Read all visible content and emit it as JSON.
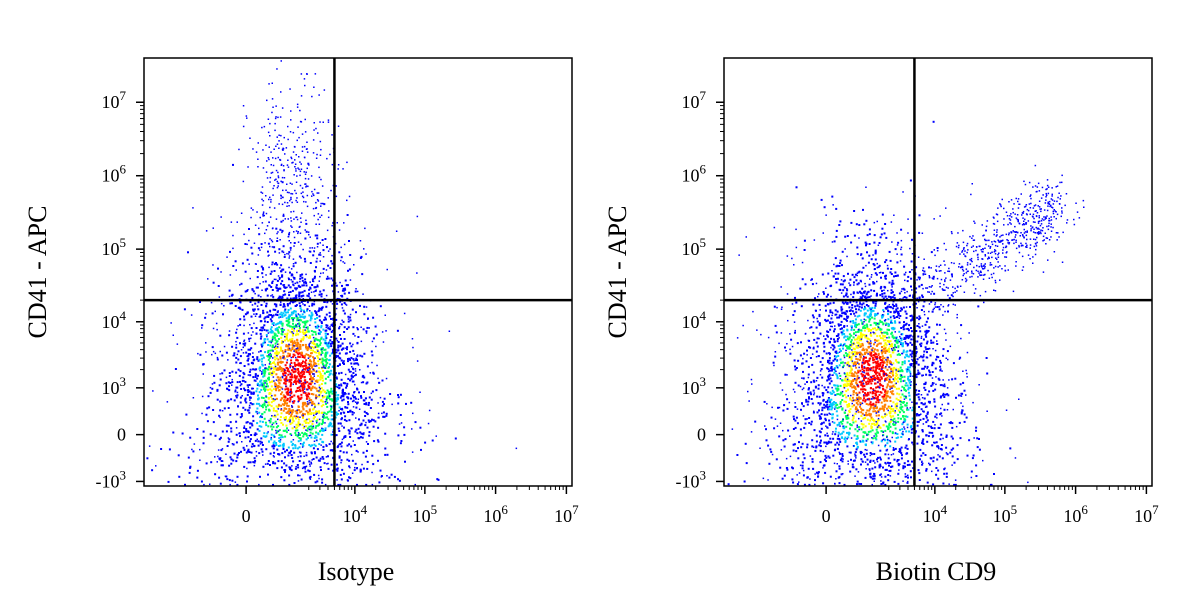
{
  "chart_data": [
    {
      "type": "scatter",
      "subtype": "flow-cytometry-density-dot-plot",
      "xlabel": "Isotype",
      "ylabel": "CD41 - APC",
      "x_scale": "biexponential",
      "y_scale": "biexponential",
      "x_ticks": [
        {
          "base": "0",
          "exp": ""
        },
        {
          "base": "10",
          "exp": "4"
        },
        {
          "base": "10",
          "exp": "5"
        },
        {
          "base": "10",
          "exp": "6"
        },
        {
          "base": "10",
          "exp": "7"
        }
      ],
      "y_ticks": [
        {
          "base": "-10",
          "exp": "3"
        },
        {
          "base": "0",
          "exp": ""
        },
        {
          "base": "10",
          "exp": "3"
        },
        {
          "base": "10",
          "exp": "4"
        },
        {
          "base": "10",
          "exp": "5"
        },
        {
          "base": "10",
          "exp": "6"
        },
        {
          "base": "10",
          "exp": "7"
        }
      ],
      "gates": {
        "x": 5000,
        "y": 20000
      },
      "populations": [
        {
          "name": "main",
          "x_center": 1200,
          "y_center": 1500,
          "density": "high"
        },
        {
          "name": "upper-left",
          "x_center": 1000,
          "y_center": 700000,
          "density": "low"
        }
      ],
      "grid": false
    },
    {
      "type": "scatter",
      "subtype": "flow-cytometry-density-dot-plot",
      "xlabel": "Biotin CD9",
      "ylabel": "CD41 - APC",
      "x_scale": "biexponential",
      "y_scale": "biexponential",
      "x_ticks": [
        {
          "base": "0",
          "exp": ""
        },
        {
          "base": "10",
          "exp": "4"
        },
        {
          "base": "10",
          "exp": "5"
        },
        {
          "base": "10",
          "exp": "6"
        },
        {
          "base": "10",
          "exp": "7"
        }
      ],
      "y_ticks": [
        {
          "base": "-10",
          "exp": "3"
        },
        {
          "base": "0",
          "exp": ""
        },
        {
          "base": "10",
          "exp": "3"
        },
        {
          "base": "10",
          "exp": "4"
        },
        {
          "base": "10",
          "exp": "5"
        },
        {
          "base": "10",
          "exp": "6"
        },
        {
          "base": "10",
          "exp": "7"
        }
      ],
      "gates": {
        "x": 5000,
        "y": 20000
      },
      "populations": [
        {
          "name": "main",
          "x_center": 1000,
          "y_center": 1500,
          "density": "high"
        },
        {
          "name": "upper-right",
          "x_center": 500000,
          "y_center": 400000,
          "density": "medium"
        }
      ],
      "grid": false
    }
  ],
  "colors": {
    "low": "#0000ff",
    "mid_low": "#00c8ff",
    "mid": "#00ff60",
    "mid_high": "#ffff00",
    "high": "#ff0000",
    "axis": "#000000"
  }
}
